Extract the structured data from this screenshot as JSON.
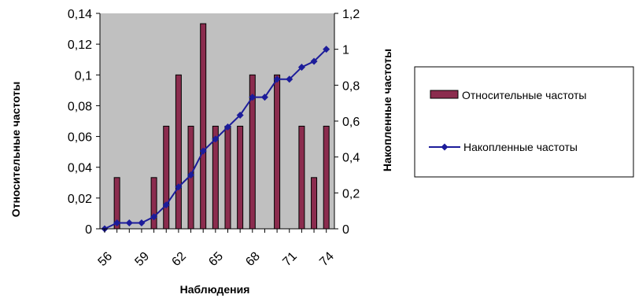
{
  "chart_data": {
    "type": "bar",
    "xlabel": "Наблюдения",
    "ylabel": "Относительные частоты",
    "y2label": "Накопленные частоты",
    "ylim": [
      0,
      0.14
    ],
    "y2lim": [
      0,
      1.2
    ],
    "yticks": [
      "0",
      "0,02",
      "0,04",
      "0,06",
      "0,08",
      "0,1",
      "0,12",
      "0,14"
    ],
    "y2ticks": [
      "0",
      "0,2",
      "0,4",
      "0,6",
      "0,8",
      "1",
      "1,2"
    ],
    "xticks": [
      "56",
      "59",
      "62",
      "65",
      "68",
      "71",
      "74"
    ],
    "categories": [
      56,
      57,
      58,
      59,
      60,
      61,
      62,
      63,
      64,
      65,
      66,
      67,
      68,
      69,
      70,
      71,
      72,
      73,
      74
    ],
    "legend_position": "right",
    "grid": false,
    "plot_background": "#c0c0c0",
    "series": [
      {
        "name": "Относительные частоты",
        "type": "bar",
        "axis": "left",
        "color": "#8b2c4e",
        "values": [
          0,
          0.0333,
          0,
          0,
          0.0333,
          0.0667,
          0.1,
          0.0667,
          0.1333,
          0.0667,
          0.0667,
          0.0667,
          0.1,
          0,
          0.1,
          0,
          0.0667,
          0.0333,
          0.0667
        ]
      },
      {
        "name": "Накопленные частоты",
        "type": "line",
        "axis": "right",
        "color": "#1c1c9a",
        "values": [
          0,
          0.033,
          0.033,
          0.033,
          0.067,
          0.133,
          0.233,
          0.3,
          0.433,
          0.5,
          0.567,
          0.633,
          0.733,
          0.733,
          0.833,
          0.833,
          0.9,
          0.933,
          1.0
        ]
      }
    ]
  }
}
